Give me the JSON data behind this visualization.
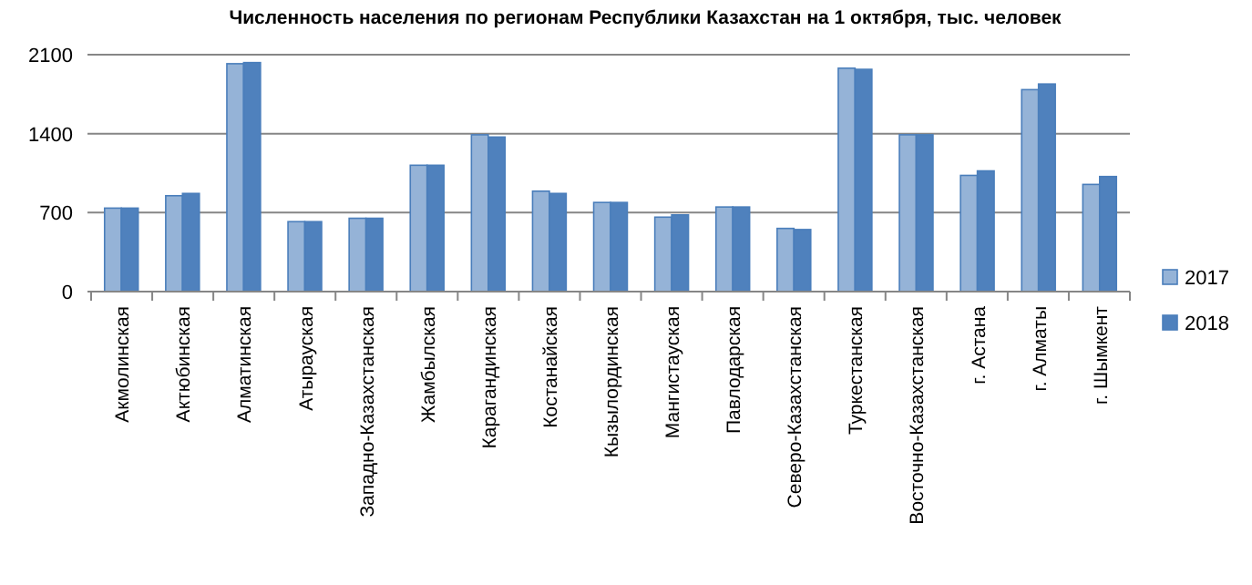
{
  "chart_data": {
    "type": "bar",
    "title": "Численность населения по регионам Республики Казахстан на 1 октября, тыс. человек",
    "categories": [
      "Акмолинская",
      "Актюбинская",
      "Алматинская",
      "Атырауская",
      "Западно-Казахстанская",
      "Жамбылская",
      "Карагандинская",
      "Костанайская",
      "Кызылординская",
      "Мангистауская",
      "Павлодарская",
      "Северо-Казахстанская",
      "Туркестанская",
      "Восточно-Казахстанская",
      "г. Астана",
      "г. Алматы",
      "г. Шымкент"
    ],
    "series": [
      {
        "name": "2017",
        "color": "#95b3d7",
        "values": [
          740,
          850,
          2020,
          620,
          650,
          1120,
          1390,
          890,
          790,
          660,
          750,
          560,
          1980,
          1390,
          1030,
          1790,
          950
        ]
      },
      {
        "name": "2018",
        "color": "#4f81bd",
        "values": [
          740,
          870,
          2030,
          620,
          650,
          1120,
          1370,
          870,
          790,
          680,
          750,
          550,
          1970,
          1390,
          1070,
          1840,
          1020
        ]
      }
    ],
    "ylim": [
      0,
      2100
    ],
    "yticks": [
      0,
      700,
      1400,
      2100
    ],
    "grid": "y",
    "legend": "right"
  }
}
